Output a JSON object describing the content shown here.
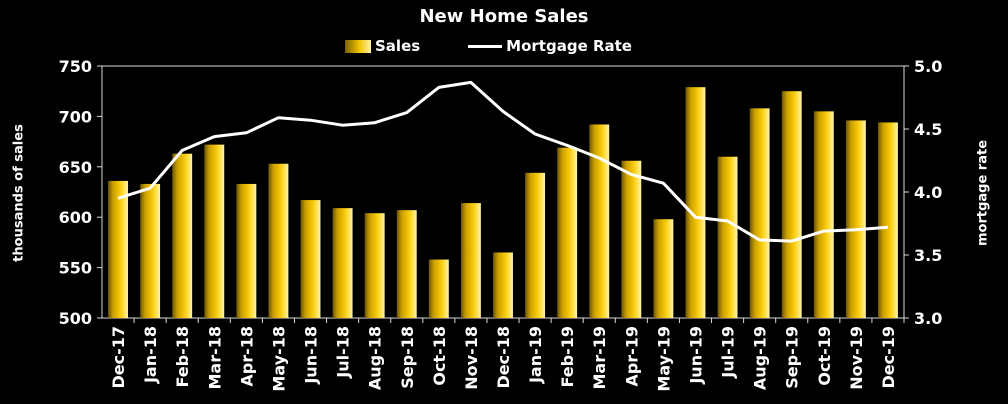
{
  "chart_data": {
    "type": "bar",
    "title": "New Home Sales",
    "categories": [
      "Dec-17",
      "Jan-18",
      "Feb-18",
      "Mar-18",
      "Apr-18",
      "May-18",
      "Jun-18",
      "Jul-18",
      "Aug-18",
      "Sep-18",
      "Oct-18",
      "Nov-18",
      "Dec-18",
      "Jan-19",
      "Feb-19",
      "Mar-19",
      "Apr-19",
      "May-19",
      "Jun-19",
      "Jul-19",
      "Aug-19",
      "Sep-19",
      "Oct-19",
      "Nov-19",
      "Dec-19"
    ],
    "series": [
      {
        "name": "Sales",
        "type": "bar",
        "axis": "left",
        "values": [
          636,
          633,
          663,
          672,
          633,
          653,
          617,
          609,
          604,
          607,
          558,
          614,
          565,
          644,
          669,
          692,
          656,
          598,
          729,
          660,
          708,
          725,
          705,
          696,
          694
        ]
      },
      {
        "name": "Mortgage Rate",
        "type": "line",
        "axis": "right",
        "values": [
          3.95,
          4.03,
          4.33,
          4.44,
          4.47,
          4.59,
          4.57,
          4.53,
          4.55,
          4.63,
          4.83,
          4.87,
          4.64,
          4.46,
          4.37,
          4.27,
          4.14,
          4.07,
          3.8,
          3.77,
          3.62,
          3.61,
          3.69,
          3.7,
          3.72
        ]
      }
    ],
    "ylabel": "thousands of sales",
    "y2label": "mortgage rate",
    "ylim": [
      500,
      750
    ],
    "y2lim": [
      3.0,
      5.0
    ],
    "yticks": [
      "500",
      "550",
      "600",
      "650",
      "700",
      "750"
    ],
    "y2ticks": [
      "3.0",
      "3.5",
      "4.0",
      "4.5",
      "5.0"
    ],
    "legend_position": "top",
    "grid": false,
    "colors": {
      "background": "#000000",
      "bar": "#f2c300",
      "line": "#ffffff"
    }
  }
}
